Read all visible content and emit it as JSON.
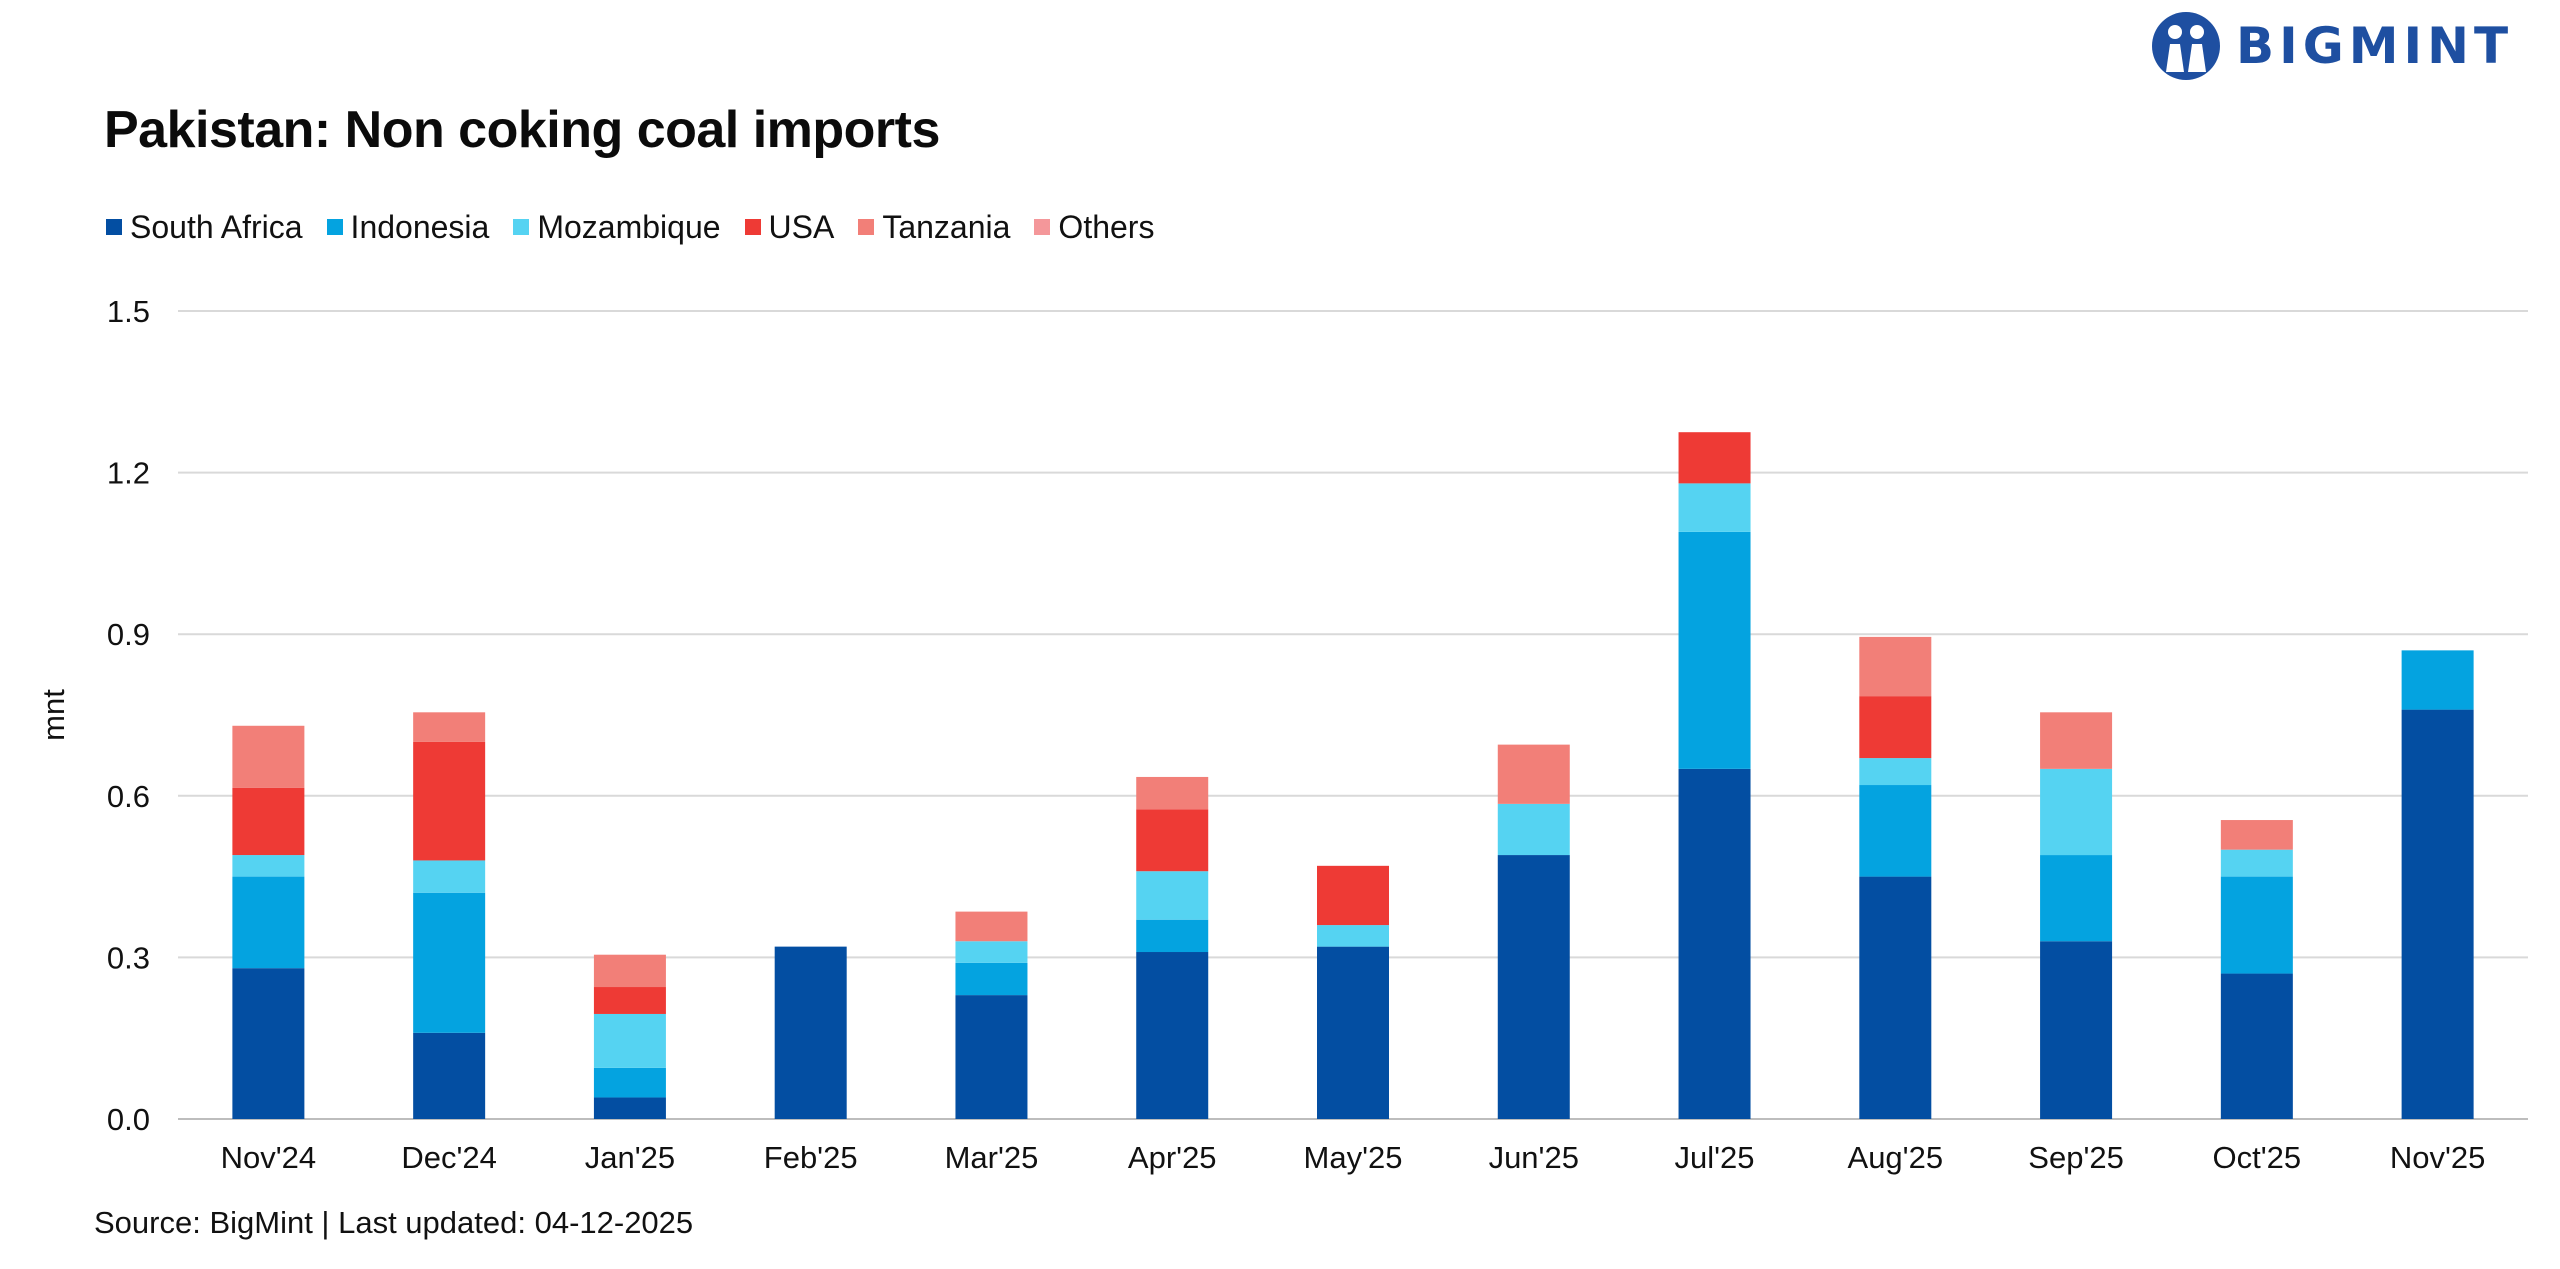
{
  "logo": {
    "text": "BIGMINT"
  },
  "chart_data": {
    "type": "bar",
    "stacked": true,
    "title": "Pakistan: Non coking coal imports",
    "ylabel": "mnt",
    "xlabel": "",
    "ylim": [
      0,
      1.5
    ],
    "yticks": [
      0.0,
      0.3,
      0.6,
      0.9,
      1.2,
      1.5
    ],
    "ytick_labels": [
      "0.0",
      "0.3",
      "0.6",
      "0.9",
      "1.2",
      "1.5"
    ],
    "grid": true,
    "legend_position": "top-left",
    "categories": [
      "Nov'24",
      "Dec'24",
      "Jan'25",
      "Feb'25",
      "Mar'25",
      "Apr'25",
      "May'25",
      "Jun'25",
      "Jul'25",
      "Aug'25",
      "Sep'25",
      "Oct'25",
      "Nov'25"
    ],
    "series": [
      {
        "name": "South Africa",
        "color": "#034ea2",
        "values": [
          0.28,
          0.16,
          0.04,
          0.32,
          0.23,
          0.31,
          0.32,
          0.49,
          0.65,
          0.45,
          0.33,
          0.27,
          0.76
        ]
      },
      {
        "name": "Indonesia",
        "color": "#04a3e0",
        "values": [
          0.17,
          0.26,
          0.055,
          0.0,
          0.06,
          0.06,
          0.0,
          0.0,
          0.44,
          0.17,
          0.16,
          0.18,
          0.11
        ]
      },
      {
        "name": "Mozambique",
        "color": "#55d3f2",
        "values": [
          0.04,
          0.06,
          0.1,
          0.0,
          0.04,
          0.09,
          0.04,
          0.095,
          0.09,
          0.05,
          0.16,
          0.05,
          0.0
        ]
      },
      {
        "name": "USA",
        "color": "#ee3a35",
        "values": [
          0.125,
          0.22,
          0.05,
          0.0,
          0.0,
          0.115,
          0.11,
          0.0,
          0.095,
          0.115,
          0.0,
          0.0,
          0.0
        ]
      },
      {
        "name": "Tanzania",
        "color": "#f27f78",
        "values": [
          0.115,
          0.055,
          0.06,
          0.0,
          0.055,
          0.06,
          0.0,
          0.11,
          0.0,
          0.11,
          0.105,
          0.055,
          0.0
        ]
      },
      {
        "name": "Others",
        "color": "#f4979a",
        "values": [
          0.0,
          0.0,
          0.0,
          0.0,
          0.0,
          0.0,
          0.0,
          0.0,
          0.0,
          0.0,
          0.0,
          0.0,
          0.0
        ]
      }
    ]
  },
  "footer": {
    "source": "Source: BigMint | Last updated: 04-12-2025"
  }
}
